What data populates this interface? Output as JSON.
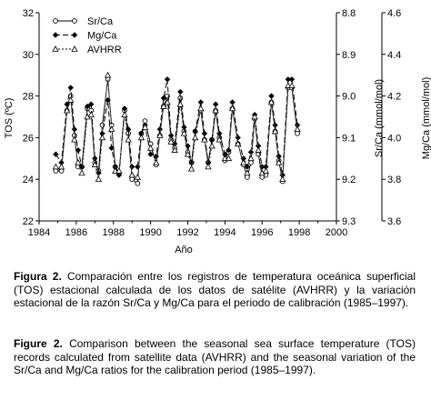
{
  "chart_data": {
    "type": "line",
    "xlabel": "Año",
    "ylabel_left": "TOS (ºC)",
    "ylabel_right1": "Sr/Ca (mmol/mol)",
    "ylabel_right2": "Mg/Ca (mmol/mol)",
    "xlim": [
      1984,
      2000
    ],
    "ylim_left": [
      22,
      32
    ],
    "ylim_right1": [
      9.3,
      8.8
    ],
    "ylim_right2": [
      3.6,
      4.6
    ],
    "x_ticks": [
      "1984",
      "1986",
      "1988",
      "1990",
      "1992",
      "1994",
      "1996",
      "1998",
      "2000"
    ],
    "y_ticks_left": [
      "22",
      "24",
      "26",
      "28",
      "30",
      "32"
    ],
    "y_ticks_right1": [
      "9.3",
      "9.2",
      "9.1",
      "9.0",
      "8.9",
      "8.8"
    ],
    "y_ticks_right2": [
      "3.6",
      "3.8",
      "4.0",
      "4.2",
      "4.4",
      "4.6"
    ],
    "legend_placement": "top-left",
    "series": [
      {
        "name": "Sr/Ca",
        "marker": "open-circle",
        "dash": "",
        "x": [
          1984.9,
          1985.2,
          1985.5,
          1985.7,
          1985.9,
          1986.1,
          1986.3,
          1986.6,
          1986.8,
          1987.0,
          1987.2,
          1987.4,
          1987.7,
          1987.9,
          1988.1,
          1988.3,
          1988.6,
          1988.8,
          1989.0,
          1989.3,
          1989.5,
          1989.7,
          1990.0,
          1990.3,
          1990.5,
          1990.7,
          1990.9,
          1991.1,
          1991.3,
          1991.6,
          1991.8,
          1992.0,
          1992.2,
          1992.4,
          1992.7,
          1992.9,
          1993.1,
          1993.3,
          1993.5,
          1993.7,
          1994.0,
          1994.2,
          1994.4,
          1994.7,
          1995.0,
          1995.2,
          1995.4,
          1995.6,
          1995.8,
          1996.0,
          1996.2,
          1996.5,
          1996.7,
          1996.9,
          1997.1,
          1997.4,
          1997.6,
          1997.9
        ],
        "y": [
          24.4,
          24.4,
          27.3,
          28.0,
          26.1,
          24.6,
          24.6,
          27.4,
          27.3,
          24.8,
          24.4,
          26.6,
          28.8,
          26.6,
          24.6,
          24.3,
          27.3,
          26.2,
          24.0,
          23.8,
          26.2,
          26.8,
          25.7,
          24.7,
          26.1,
          27.5,
          28.0,
          25.9,
          25.5,
          27.9,
          26.3,
          25.3,
          24.8,
          26.3,
          27.3,
          25.9,
          24.8,
          25.9,
          27.3,
          26.0,
          24.9,
          25.3,
          27.4,
          25.7,
          24.7,
          24.1,
          24.8,
          26.9,
          25.2,
          24.1,
          24.2,
          27.7,
          26.3,
          24.9,
          23.9,
          28.4,
          28.4,
          26.2
        ]
      },
      {
        "name": "Mg/Ca",
        "marker": "filled-diamond",
        "dash": "6 3",
        "x": [
          1984.9,
          1985.2,
          1985.5,
          1985.7,
          1985.9,
          1986.1,
          1986.3,
          1986.6,
          1986.8,
          1987.0,
          1987.2,
          1987.4,
          1987.7,
          1987.9,
          1988.1,
          1988.3,
          1988.6,
          1988.8,
          1989.0,
          1989.3,
          1989.5,
          1989.7,
          1990.0,
          1990.3,
          1990.5,
          1990.7,
          1990.9,
          1991.1,
          1991.3,
          1991.6,
          1991.8,
          1992.0,
          1992.2,
          1992.4,
          1992.7,
          1992.9,
          1993.1,
          1993.3,
          1993.5,
          1993.7,
          1994.0,
          1994.2,
          1994.4,
          1994.7,
          1995.0,
          1995.2,
          1995.4,
          1995.6,
          1995.8,
          1996.0,
          1996.2,
          1996.5,
          1996.7,
          1996.9,
          1997.1,
          1997.4,
          1997.6,
          1997.9
        ],
        "y": [
          25.2,
          24.8,
          27.6,
          28.4,
          26.4,
          25.4,
          24.6,
          27.5,
          27.6,
          25.0,
          24.3,
          26.2,
          27.8,
          25.5,
          24.6,
          24.2,
          27.4,
          26.4,
          24.6,
          24.6,
          26.2,
          26.6,
          25.2,
          25.1,
          26.4,
          27.9,
          28.8,
          26.1,
          25.7,
          28.2,
          26.5,
          25.6,
          24.8,
          26.3,
          27.7,
          26.2,
          24.8,
          25.9,
          27.6,
          26.2,
          25.2,
          25.4,
          27.7,
          26.0,
          25.0,
          24.6,
          25.3,
          27.1,
          25.6,
          24.6,
          24.6,
          28.0,
          26.6,
          25.1,
          24.2,
          28.8,
          28.8,
          26.6
        ]
      },
      {
        "name": "AVHRR",
        "marker": "open-triangle",
        "dash": "2 2",
        "x": [
          1984.9,
          1985.2,
          1985.5,
          1985.7,
          1985.9,
          1986.1,
          1986.3,
          1986.6,
          1986.8,
          1987.0,
          1987.2,
          1987.4,
          1987.7,
          1987.9,
          1988.1,
          1988.3,
          1988.6,
          1988.8,
          1989.0,
          1989.3,
          1989.5,
          1989.7,
          1990.0,
          1990.3,
          1990.5,
          1990.7,
          1990.9,
          1991.1,
          1991.3,
          1991.6,
          1991.8,
          1992.0,
          1992.2,
          1992.4,
          1992.7,
          1992.9,
          1993.1,
          1993.3,
          1993.5,
          1993.7,
          1994.0,
          1994.2,
          1994.4,
          1994.7,
          1995.0,
          1995.2,
          1995.4,
          1995.6,
          1995.8,
          1996.0,
          1996.2,
          1996.5,
          1996.7,
          1996.9,
          1997.1,
          1997.4,
          1997.6,
          1997.9
        ],
        "y": [
          24.6,
          24.6,
          27.3,
          27.8,
          25.9,
          24.8,
          24.3,
          27.0,
          27.1,
          24.7,
          24.0,
          26.0,
          29.0,
          26.4,
          24.4,
          24.4,
          27.1,
          25.9,
          24.2,
          24.1,
          26.0,
          26.5,
          25.5,
          24.8,
          26.1,
          27.5,
          27.7,
          25.8,
          25.4,
          27.6,
          26.2,
          25.2,
          24.5,
          26.0,
          27.4,
          25.9,
          24.6,
          25.6,
          27.3,
          25.9,
          25.0,
          25.0,
          27.4,
          25.7,
          24.8,
          24.3,
          25.0,
          27.0,
          25.4,
          24.3,
          24.4,
          27.7,
          26.3,
          24.8,
          24.0,
          28.5,
          28.5,
          26.4
        ]
      }
    ]
  },
  "caption": {
    "es_label": "Figura 2.",
    "es_text": " Comparación entre los registros de temperatura oceánica superficial (TOS) estacional calculada de los datos de satélite (AVHRR) y la variación estacional de la razón Sr/Ca y Mg/Ca para el periodo de calibración (1985–1997).",
    "en_label": "Figure 2.",
    "en_text": " Comparison between the seasonal sea surface temperature (TOS) records calculated from satellite data (AVHRR) and the seasonal variation of the Sr/Ca and Mg/Ca ratios for the calibration period (1985–1997)."
  }
}
